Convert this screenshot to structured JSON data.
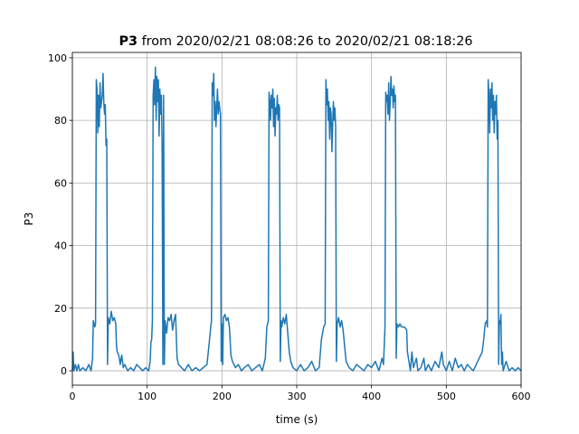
{
  "chart_data": {
    "type": "line",
    "title_bold": "P3",
    "title": "from 2020/02/21 08:08:26 to 2020/02/21 08:18:26",
    "xlabel": "time (s)",
    "ylabel": "P3",
    "xlim": [
      0,
      600
    ],
    "ylim": [
      -4.6,
      101.7
    ],
    "xticks": [
      0,
      100,
      200,
      300,
      400,
      500,
      600
    ],
    "yticks": [
      0,
      20,
      40,
      60,
      80,
      100
    ],
    "grid": true,
    "x": [
      0,
      1,
      2,
      4,
      6,
      8,
      10,
      14,
      18,
      22,
      25,
      27,
      28,
      30,
      31,
      32,
      33,
      34,
      35,
      36,
      37,
      38,
      40,
      41,
      42,
      43,
      44,
      45,
      46,
      47,
      48,
      50,
      52,
      54,
      56,
      58,
      59,
      60,
      62,
      64,
      66,
      68,
      70,
      74,
      78,
      82,
      86,
      90,
      94,
      98,
      102,
      104,
      105,
      106,
      107,
      108,
      109,
      110,
      111,
      112,
      113,
      114,
      115,
      116,
      117,
      118,
      119,
      120,
      121,
      122,
      123,
      124,
      126,
      128,
      130,
      132,
      134,
      136,
      138,
      140,
      142,
      146,
      150,
      155,
      160,
      165,
      170,
      175,
      180,
      183,
      185,
      186,
      187,
      188,
      189,
      190,
      191,
      192,
      193,
      194,
      195,
      196,
      197,
      198,
      199,
      200,
      201,
      202,
      204,
      206,
      208,
      210,
      212,
      214,
      218,
      222,
      226,
      230,
      235,
      240,
      245,
      250,
      254,
      258,
      260,
      262,
      263,
      264,
      265,
      266,
      267,
      268,
      269,
      270,
      271,
      272,
      273,
      274,
      275,
      276,
      277,
      278,
      279,
      280,
      282,
      284,
      286,
      288,
      290,
      292,
      295,
      300,
      305,
      310,
      315,
      320,
      325,
      330,
      333,
      336,
      338,
      339,
      340,
      341,
      342,
      343,
      344,
      345,
      346,
      347,
      348,
      349,
      350,
      351,
      352,
      353,
      354,
      356,
      358,
      360,
      362,
      364,
      366,
      370,
      375,
      380,
      385,
      390,
      395,
      400,
      405,
      410,
      414,
      416,
      418,
      419,
      420,
      421,
      422,
      423,
      424,
      425,
      426,
      427,
      428,
      429,
      430,
      431,
      432,
      433,
      434,
      436,
      438,
      440,
      444,
      447,
      448,
      450,
      452,
      454,
      456,
      460,
      462,
      466,
      470,
      472,
      476,
      480,
      485,
      490,
      494,
      496,
      500,
      504,
      508,
      512,
      516,
      520,
      524,
      528,
      532,
      536,
      540,
      544,
      548,
      550,
      552,
      554,
      555,
      556,
      557,
      558,
      559,
      560,
      561,
      562,
      563,
      564,
      565,
      566,
      567,
      568,
      569,
      570,
      571,
      572,
      573,
      574,
      575,
      576,
      580,
      584,
      588,
      592,
      596,
      600
    ],
    "series": [
      {
        "name": "P3",
        "color": "#1f77b4",
        "values": [
          0,
          6,
          0,
          2,
          0,
          2,
          0,
          1,
          0,
          2,
          0,
          4,
          16,
          14,
          15,
          93,
          90,
          76,
          88,
          78,
          92,
          84,
          88,
          95,
          86,
          82,
          85,
          72,
          74,
          2,
          17,
          15,
          19,
          16,
          17,
          15,
          8,
          6,
          5,
          2,
          5,
          1,
          2,
          0,
          1,
          0,
          2,
          1,
          0,
          1,
          0,
          3,
          9,
          10,
          16,
          88,
          93,
          85,
          97,
          80,
          94,
          86,
          93,
          75,
          90,
          82,
          88,
          72,
          2,
          88,
          2,
          16,
          12,
          17,
          16,
          18,
          13,
          16,
          18,
          4,
          2,
          1,
          0,
          2,
          0,
          1,
          0,
          1,
          2,
          9,
          14,
          16,
          92,
          88,
          95,
          80,
          86,
          78,
          84,
          90,
          82,
          86,
          84,
          82,
          3,
          15,
          2,
          17,
          18,
          16,
          17,
          14,
          5,
          3,
          1,
          2,
          0,
          1,
          2,
          0,
          1,
          2,
          0,
          4,
          14,
          16,
          89,
          86,
          80,
          88,
          84,
          90,
          78,
          87,
          75,
          84,
          82,
          88,
          80,
          85,
          84,
          3,
          16,
          14,
          17,
          15,
          18,
          12,
          6,
          3,
          1,
          0,
          2,
          0,
          1,
          3,
          0,
          1,
          10,
          14,
          15,
          93,
          85,
          90,
          80,
          86,
          74,
          84,
          82,
          70,
          78,
          86,
          80,
          84,
          78,
          3,
          15,
          17,
          14,
          16,
          13,
          8,
          3,
          1,
          0,
          2,
          1,
          0,
          2,
          1,
          3,
          0,
          4,
          2,
          14,
          89,
          86,
          88,
          82,
          92,
          80,
          86,
          94,
          88,
          90,
          84,
          91,
          86,
          88,
          4,
          15,
          14,
          15,
          14,
          14,
          13,
          6,
          3,
          0,
          6,
          1,
          4,
          0,
          1,
          4,
          0,
          2,
          0,
          3,
          1,
          6,
          2,
          0,
          3,
          0,
          4,
          1,
          2,
          0,
          2,
          1,
          0,
          2,
          4,
          6,
          10,
          15,
          16,
          14,
          93,
          88,
          76,
          90,
          84,
          92,
          80,
          88,
          76,
          86,
          82,
          88,
          74,
          80,
          2,
          16,
          15,
          18,
          2,
          6,
          0,
          3,
          0,
          1,
          0,
          1,
          0
        ]
      }
    ]
  }
}
